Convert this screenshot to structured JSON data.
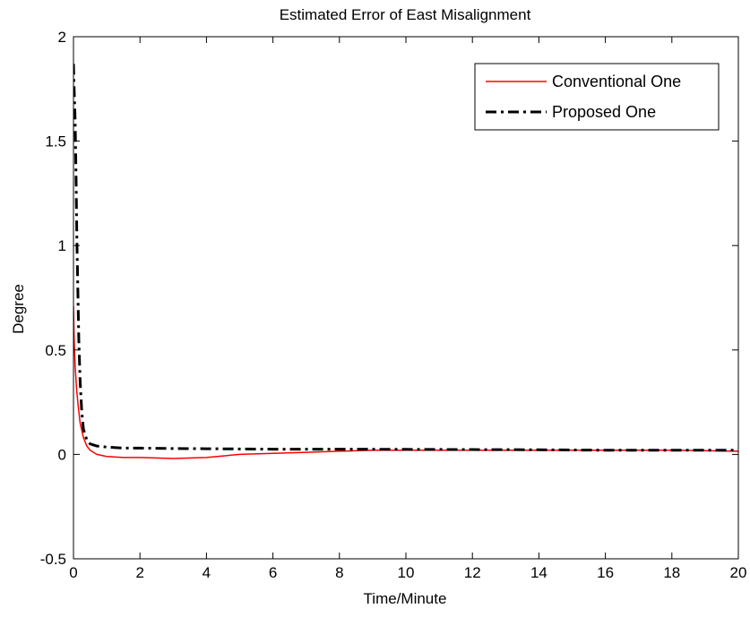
{
  "chart_data": {
    "type": "line",
    "title": "Estimated Error of East Misalignment",
    "xlabel": "Time/Minute",
    "ylabel": "Degree",
    "xlim": [
      0,
      20
    ],
    "ylim": [
      -0.5,
      2
    ],
    "x_ticks": [
      0,
      2,
      4,
      6,
      8,
      10,
      12,
      14,
      16,
      18,
      20
    ],
    "y_ticks": [
      -0.5,
      0,
      0.5,
      1,
      1.5,
      2
    ],
    "x_tick_labels": [
      "0",
      "2",
      "4",
      "6",
      "8",
      "10",
      "12",
      "14",
      "16",
      "18",
      "20"
    ],
    "y_tick_labels": [
      "-0.5",
      "0",
      "0.5",
      "1",
      "1.5",
      "2"
    ],
    "grid": false,
    "legend_position": "top-right",
    "series": [
      {
        "name": "Conventional One",
        "color": "#ff0000",
        "style": "solid",
        "x": [
          0,
          0.02,
          0.05,
          0.1,
          0.15,
          0.2,
          0.3,
          0.4,
          0.5,
          0.7,
          1,
          1.5,
          2,
          3,
          4,
          5,
          6,
          7,
          8,
          9,
          10,
          12,
          14,
          16,
          18,
          20
        ],
        "y": [
          0.71,
          0.55,
          0.42,
          0.3,
          0.22,
          0.15,
          0.08,
          0.04,
          0.02,
          0.0,
          -0.01,
          -0.015,
          -0.015,
          -0.02,
          -0.015,
          0.0,
          0.005,
          0.01,
          0.015,
          0.02,
          0.02,
          0.02,
          0.02,
          0.02,
          0.02,
          0.015
        ]
      },
      {
        "name": "Proposed One",
        "color": "#000000",
        "style": "dashdot",
        "x": [
          0,
          0.02,
          0.05,
          0.08,
          0.1,
          0.13,
          0.16,
          0.2,
          0.25,
          0.3,
          0.4,
          0.5,
          0.7,
          1,
          1.5,
          2,
          3,
          4,
          5,
          6,
          8,
          10,
          12,
          14,
          16,
          18,
          20
        ],
        "y": [
          1.87,
          1.75,
          1.6,
          1.3,
          1.05,
          0.8,
          0.55,
          0.35,
          0.2,
          0.12,
          0.07,
          0.05,
          0.04,
          0.035,
          0.03,
          0.03,
          0.028,
          0.027,
          0.026,
          0.025,
          0.025,
          0.024,
          0.023,
          0.022,
          0.02,
          0.02,
          0.02
        ]
      }
    ]
  }
}
